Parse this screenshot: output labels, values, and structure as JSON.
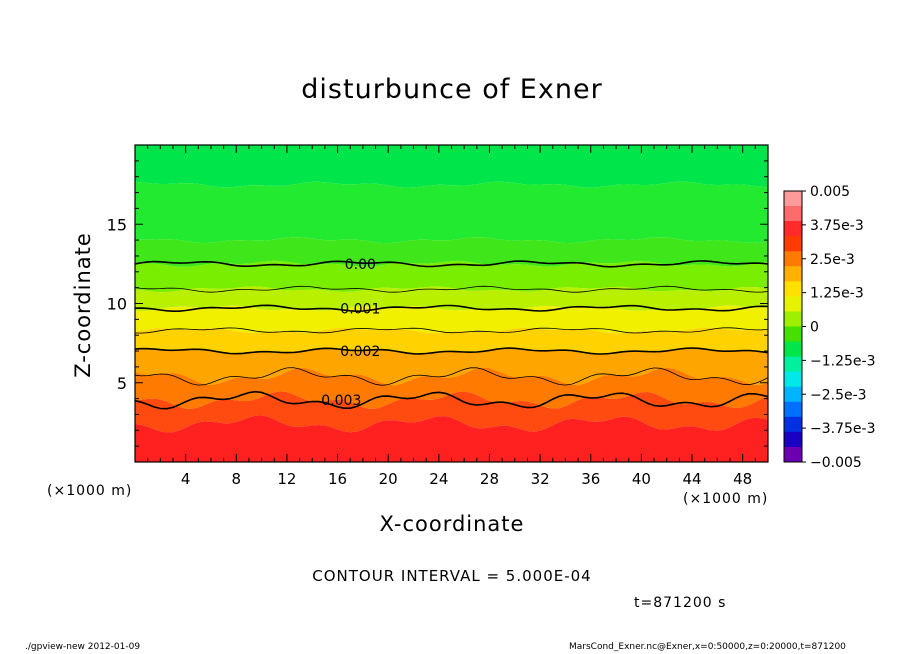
{
  "chart_data": {
    "type": "heatmap",
    "title": "disturbunce of Exner",
    "xlabel": "X-coordinate",
    "ylabel": "Z-coordinate",
    "x_unit_left": "(×1000 m)",
    "x_unit_right": "(×1000 m)",
    "xlim": [
      0,
      50
    ],
    "ylim": [
      0,
      20
    ],
    "x_ticks": [
      4,
      8,
      12,
      16,
      20,
      24,
      28,
      32,
      36,
      40,
      44,
      48
    ],
    "y_ticks": [
      5,
      10,
      15
    ],
    "contour_interval_text": "CONTOUR INTERVAL = 5.000E-04",
    "time_text": "t=871200 s",
    "contour_labels": [
      {
        "text": "0.00",
        "x": 17.8,
        "z": 12.5
      },
      {
        "text": "0.001",
        "x": 17.8,
        "z": 9.7
      },
      {
        "text": "0.002",
        "x": 17.8,
        "z": 7.0
      },
      {
        "text": "0.003",
        "x": 16.3,
        "z": 3.9
      }
    ],
    "contour_levels": [
      {
        "value": 0.0,
        "z": 12.5,
        "major": true
      },
      {
        "value": 0.0005,
        "z": 10.9,
        "major": false
      },
      {
        "value": 0.001,
        "z": 9.7,
        "major": true
      },
      {
        "value": 0.0015,
        "z": 8.3,
        "major": false
      },
      {
        "value": 0.002,
        "z": 7.0,
        "major": true
      },
      {
        "value": 0.0025,
        "z": 5.4,
        "major": false
      },
      {
        "value": 0.003,
        "z": 3.9,
        "major": true
      }
    ],
    "colorbar": {
      "labels": [
        "0.005",
        "3.75e-3",
        "2.5e-3",
        "1.25e-3",
        "0",
        "−1.25e-3",
        "−2.5e-3",
        "−3.75e-3",
        "−0.005"
      ],
      "colors": [
        "#ff9a9a",
        "#ff6a6a",
        "#ff2a2a",
        "#ff3c00",
        "#ff7a00",
        "#ffb000",
        "#ffe000",
        "#e6f200",
        "#9ef000",
        "#46e000",
        "#00e64a",
        "#00f0a0",
        "#00e8e8",
        "#00b4ff",
        "#0070ff",
        "#0030e0",
        "#1a00c0",
        "#6a00b0"
      ]
    }
  },
  "footer": {
    "left": "./gpview-new   2012-01-09",
    "right": "MarsCond_Exner.nc@Exner,x=0:50000,z=0:20000,t=871200"
  }
}
